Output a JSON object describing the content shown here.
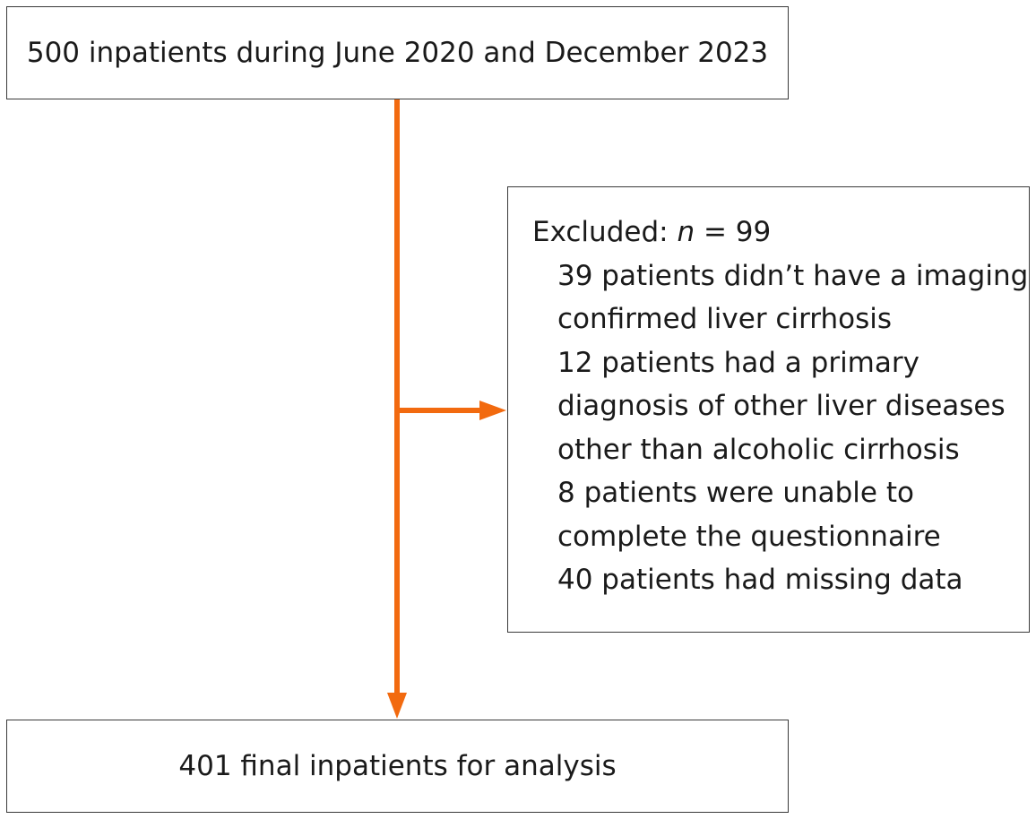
{
  "top_box": {
    "text": "500 inpatients during June 2020 and December 2023"
  },
  "excluded_box": {
    "label": "Excluded:",
    "n_symbol": "n",
    "n_equals": "= 99",
    "reason_lines": [
      "39 patients didn’t have a imaging",
      "confirmed liver cirrhosis",
      "12 patients had a primary",
      "diagnosis of other liver diseases",
      "other than alcoholic cirrhosis",
      "8 patients were unable to",
      "complete the questionnaire",
      "40 patients had missing data"
    ]
  },
  "bottom_box": {
    "text": "401 final inpatients for analysis"
  },
  "colors": {
    "arrow": "#f26a0f",
    "border": "#3a3a3a",
    "text": "#1a1a1a"
  }
}
